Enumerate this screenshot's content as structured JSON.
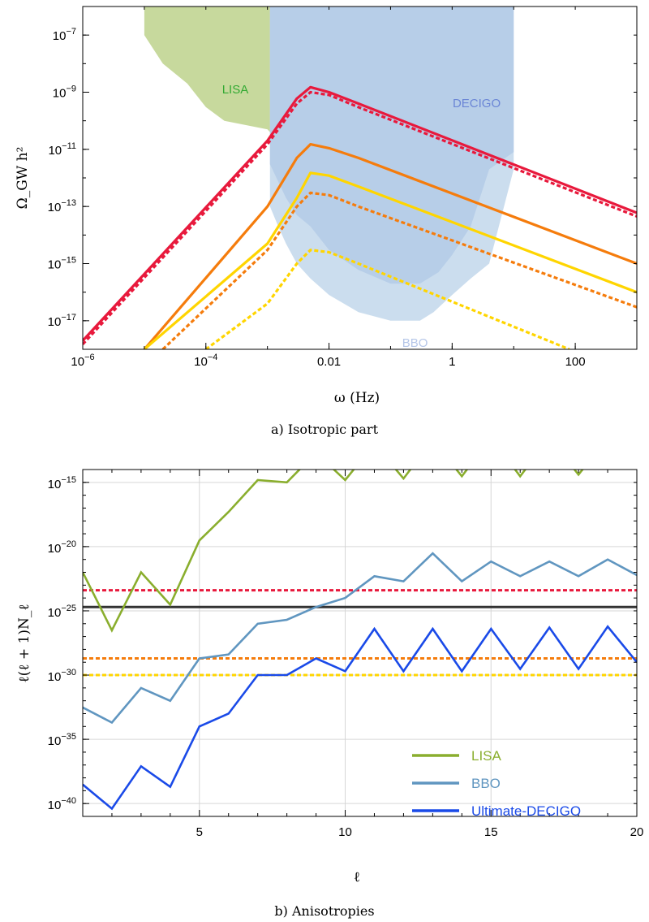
{
  "chart_data": [
    {
      "type": "line",
      "caption": "a) Isotropic part",
      "xlabel": "ω (Hz)",
      "ylabel": "Ω_GW h²",
      "xscale": "log",
      "yscale": "log",
      "xlim": [
        1e-06,
        1000
      ],
      "ylim": [
        1e-18,
        1e-06
      ],
      "xticks": [
        {
          "v": 1e-06,
          "base": "10",
          "exp": "−6"
        },
        {
          "v": 0.0001,
          "base": "10",
          "exp": "−4"
        },
        {
          "v": 0.01,
          "base": "0.01",
          "exp": ""
        },
        {
          "v": 1,
          "base": "1",
          "exp": ""
        },
        {
          "v": 100,
          "base": "100",
          "exp": ""
        }
      ],
      "yticks": [
        {
          "v": 1e-07,
          "base": "10",
          "exp": "−7"
        },
        {
          "v": 1e-09,
          "base": "10",
          "exp": "−9"
        },
        {
          "v": 1e-11,
          "base": "10",
          "exp": "−11"
        },
        {
          "v": 1e-13,
          "base": "10",
          "exp": "−13"
        },
        {
          "v": 1e-15,
          "base": "10",
          "exp": "−15"
        },
        {
          "v": 1e-17,
          "base": "10",
          "exp": "−17"
        }
      ],
      "regions": [
        {
          "name": "LISA",
          "color": "#b9cf85",
          "opacity": 0.8,
          "points": [
            [
              1e-05,
              1e-06
            ],
            [
              1e-05,
              1e-07
            ],
            [
              2e-05,
              1e-08
            ],
            [
              5e-05,
              2e-09
            ],
            [
              0.0001,
              3e-10
            ],
            [
              0.0002,
              1e-10
            ],
            [
              0.001,
              5e-11
            ],
            [
              0.0011,
              4e-11
            ],
            [
              0.0011,
              1e-06
            ]
          ]
        },
        {
          "name": "DECIGO",
          "color": "#8fa9dc",
          "opacity": 0.7,
          "points": [
            [
              0.0011,
              1e-06
            ],
            [
              0.0011,
              3e-12
            ],
            [
              0.002,
              2e-13
            ],
            [
              0.003,
              5e-14
            ],
            [
              0.005,
              2e-14
            ],
            [
              0.01,
              3e-15
            ],
            [
              0.03,
              6e-16
            ],
            [
              0.1,
              2e-16
            ],
            [
              0.3,
              2e-16
            ],
            [
              0.6,
              5e-16
            ],
            [
              1,
              2e-15
            ],
            [
              2,
              2e-14
            ],
            [
              4,
              2e-12
            ],
            [
              10,
              8e-12
            ],
            [
              10,
              1e-06
            ]
          ]
        },
        {
          "name": "BBO",
          "color": "#b9d2e8",
          "opacity": 0.75,
          "points": [
            [
              0.0011,
              1e-06
            ],
            [
              0.0011,
              1e-13
            ],
            [
              0.0015,
              2e-14
            ],
            [
              0.002,
              5e-15
            ],
            [
              0.003,
              1e-15
            ],
            [
              0.005,
              3e-16
            ],
            [
              0.01,
              8e-17
            ],
            [
              0.03,
              2e-17
            ],
            [
              0.1,
              1e-17
            ],
            [
              0.3,
              1e-17
            ],
            [
              0.5,
              2e-17
            ],
            [
              1,
              8e-17
            ],
            [
              2,
              3e-16
            ],
            [
              4,
              1e-15
            ],
            [
              10,
              2e-12
            ],
            [
              10,
              1e-06
            ]
          ]
        }
      ],
      "region_labels": [
        {
          "text": "LISA",
          "color": "#33aa33",
          "x": 0.0003,
          "y": 9e-10
        },
        {
          "text": "DECIGO",
          "color": "#6b86d6",
          "x": 2.5,
          "y": 3e-10
        },
        {
          "text": "BBO",
          "color": "#b5c6e8",
          "x": 0.25,
          "y": 1.2e-18
        }
      ],
      "series": [
        {
          "color": "#e8193c",
          "dash": false,
          "x": [
            1e-06,
            0.001,
            0.003,
            0.005,
            0.01,
            0.03,
            1000
          ],
          "y": [
            2e-18,
            2e-11,
            6e-10,
            1.5e-09,
            1e-09,
            4e-10,
            6e-14
          ]
        },
        {
          "color": "#e8193c",
          "dash": true,
          "x": [
            1e-06,
            0.001,
            0.003,
            0.005,
            0.01,
            0.03,
            1000
          ],
          "y": [
            1.5e-18,
            1.5e-11,
            4e-10,
            1e-09,
            8e-10,
            3e-10,
            4.5e-14
          ]
        },
        {
          "color": "#f57c0c",
          "dash": false,
          "x": [
            1e-05,
            0.001,
            0.003,
            0.005,
            0.01,
            0.03,
            1000
          ],
          "y": [
            1e-18,
            1e-13,
            5e-12,
            1.5e-11,
            1.1e-11,
            5e-12,
            1e-15
          ]
        },
        {
          "color": "#f57c0c",
          "dash": true,
          "x": [
            2e-05,
            0.001,
            0.003,
            0.005,
            0.01,
            0.03,
            1000
          ],
          "y": [
            1e-18,
            3e-15,
            1e-13,
            3e-13,
            2.5e-13,
            1e-13,
            3e-17
          ]
        },
        {
          "color": "#ffd500",
          "dash": false,
          "x": [
            1e-05,
            0.001,
            0.003,
            0.005,
            0.01,
            0.03,
            1000
          ],
          "y": [
            1e-18,
            5e-15,
            2e-13,
            1.5e-12,
            1.2e-12,
            5e-13,
            1e-16
          ]
        },
        {
          "color": "#ffd500",
          "dash": true,
          "x": [
            0.0001,
            0.001,
            0.003,
            0.005,
            0.01,
            0.03,
            80
          ],
          "y": [
            1e-18,
            4e-17,
            1e-15,
            3e-15,
            2.5e-15,
            1e-15,
            1e-18
          ]
        }
      ]
    },
    {
      "type": "line",
      "caption": "b) Anisotropies",
      "xlabel": "ℓ",
      "ylabel": "ℓ(ℓ + 1)N_ℓ",
      "yscale": "log",
      "xlim": [
        1,
        20
      ],
      "ylim": [
        1e-41,
        1e-14
      ],
      "xticks": [
        {
          "v": 5,
          "base": "5",
          "exp": ""
        },
        {
          "v": 10,
          "base": "10",
          "exp": ""
        },
        {
          "v": 15,
          "base": "15",
          "exp": ""
        },
        {
          "v": 20,
          "base": "20",
          "exp": ""
        }
      ],
      "yticks": [
        {
          "v": 1e-15,
          "base": "10",
          "exp": "−15"
        },
        {
          "v": 1e-20,
          "base": "10",
          "exp": "−20"
        },
        {
          "v": 1e-25,
          "base": "10",
          "exp": "−25"
        },
        {
          "v": 1e-30,
          "base": "10",
          "exp": "−30"
        },
        {
          "v": 1e-35,
          "base": "10",
          "exp": "−35"
        },
        {
          "v": 1e-40,
          "base": "10",
          "exp": "−40"
        }
      ],
      "grid": true,
      "hlines": [
        {
          "y": 4e-24,
          "color": "#e8193c",
          "dash": true
        },
        {
          "y": 2e-25,
          "color": "#333333",
          "dash": false
        },
        {
          "y": 2e-29,
          "color": "#f57c0c",
          "dash": true
        },
        {
          "y": 1e-30,
          "color": "#ffd500",
          "dash": true
        }
      ],
      "series": [
        {
          "name": "LISA",
          "color": "#8aae2e",
          "x": [
            1,
            2,
            3,
            4,
            5,
            6,
            7,
            8,
            9,
            10,
            11,
            12,
            13,
            14,
            15,
            16,
            17,
            18,
            19,
            20
          ],
          "y": [
            1e-22,
            3e-27,
            1e-22,
            3e-25,
            3e-20,
            5e-18,
            1.5e-15,
            1e-15,
            2e-13,
            1.5e-15,
            1e-12,
            2e-15,
            2e-12,
            3e-15,
            3e-12,
            3e-15,
            3e-12,
            4e-15,
            3e-12,
            1e-13
          ]
        },
        {
          "name": "BBO",
          "color": "#6096c0",
          "x": [
            1,
            2,
            3,
            4,
            5,
            6,
            7,
            8,
            9,
            10,
            11,
            12,
            13,
            14,
            15,
            16,
            17,
            18,
            19,
            20
          ],
          "y": [
            3e-33,
            2e-34,
            1e-31,
            1e-32,
            2e-29,
            4e-29,
            1e-26,
            2e-26,
            2e-25,
            1e-24,
            5e-23,
            2e-23,
            3e-21,
            2e-23,
            7e-22,
            5e-23,
            7e-22,
            5e-23,
            1e-21,
            6e-23
          ]
        },
        {
          "name": "Ultimate-DECIGO",
          "color": "#1a4ae8",
          "x": [
            1,
            2,
            3,
            4,
            5,
            6,
            7,
            8,
            9,
            10,
            11,
            12,
            13,
            14,
            15,
            16,
            17,
            18,
            19,
            20
          ],
          "y": [
            3e-39,
            4e-41,
            8e-38,
            2e-39,
            1e-34,
            1e-33,
            1e-30,
            1e-30,
            2e-29,
            2e-30,
            4e-27,
            2e-30,
            4e-27,
            2e-30,
            4e-27,
            3e-30,
            5e-27,
            3e-30,
            6e-27,
            1e-29
          ]
        }
      ]
    }
  ]
}
